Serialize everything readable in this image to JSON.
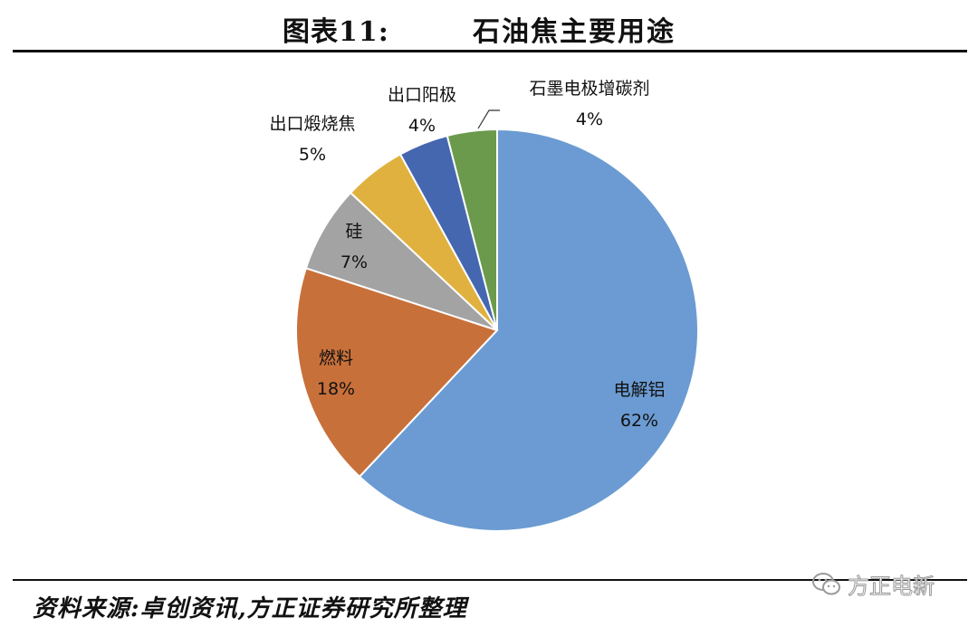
{
  "header": {
    "figure_number": "图表11:",
    "title": "石油焦主要用途"
  },
  "chart_data": {
    "type": "pie",
    "title": "石油焦主要用途",
    "slices": [
      {
        "name": "电解铝",
        "value": 62,
        "label": "62%",
        "color": "#6b9bd2"
      },
      {
        "name": "燃料",
        "value": 18,
        "label": "18%",
        "color": "#c8703a"
      },
      {
        "name": "硅",
        "value": 7,
        "label": "7%",
        "color": "#a3a3a3"
      },
      {
        "name": "出口煅烧焦",
        "value": 5,
        "label": "5%",
        "color": "#e0b13e"
      },
      {
        "name": "出口阳极",
        "value": 4,
        "label": "4%",
        "color": "#4467b0"
      },
      {
        "name": "石墨电极增碳剂",
        "value": 4,
        "label": "4%",
        "color": "#6c9a4c"
      }
    ]
  },
  "footer": {
    "source": "资料来源:卓创资讯,方正证券研究所整理",
    "watermark": "方正电新",
    "watermark_icon": "wechat-icon"
  }
}
